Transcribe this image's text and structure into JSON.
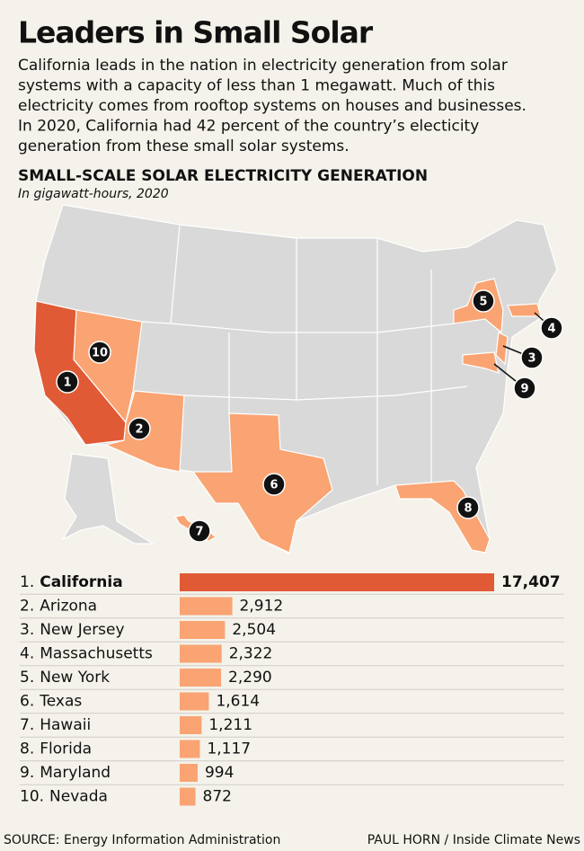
{
  "header": {
    "title": "Leaders in Small Solar",
    "description": [
      "California leads in the nation in electricity generation from solar",
      "systems with a capacity of less than 1 megawatt. Much of this",
      "electricity comes from rooftop systems on houses and businesses.",
      "In 2020, California had 42 percent of the country’s electicity",
      "generation from these small solar systems."
    ]
  },
  "chart_data": {
    "type": "bar",
    "title": "SMALL-SCALE SOLAR ELECTRICITY GENERATION",
    "subtitle": "In gigawatt-hours, 2020",
    "ranks": [
      "1.",
      "2.",
      "3.",
      "4.",
      "5.",
      "6.",
      "7.",
      "8.",
      "9.",
      "10."
    ],
    "categories": [
      "California",
      "Arizona",
      "New Jersey",
      "Massachusetts",
      "New York",
      "Texas",
      "Hawaii",
      "Florida",
      "Maryland",
      "Nevada"
    ],
    "values": [
      17407,
      2912,
      2504,
      2322,
      2290,
      1614,
      1211,
      1117,
      994,
      872
    ],
    "value_labels": [
      "17,407",
      "2,912",
      "2,504",
      "2,322",
      "2,290",
      "1,614",
      "1,211",
      "1,117",
      "994",
      "872"
    ],
    "colors": [
      "#e05a35",
      "#f9a472",
      "#f9a472",
      "#f9a472",
      "#f9a472",
      "#f9a472",
      "#f9a472",
      "#f9a472",
      "#f9a472",
      "#f9a472"
    ]
  },
  "map": {
    "markers": [
      "1",
      "2",
      "3",
      "4",
      "5",
      "6",
      "7",
      "8",
      "9",
      "10"
    ]
  },
  "footer": {
    "source": "SOURCE: Energy Information Administration",
    "credit": "PAUL HORN / Inside Climate News"
  }
}
